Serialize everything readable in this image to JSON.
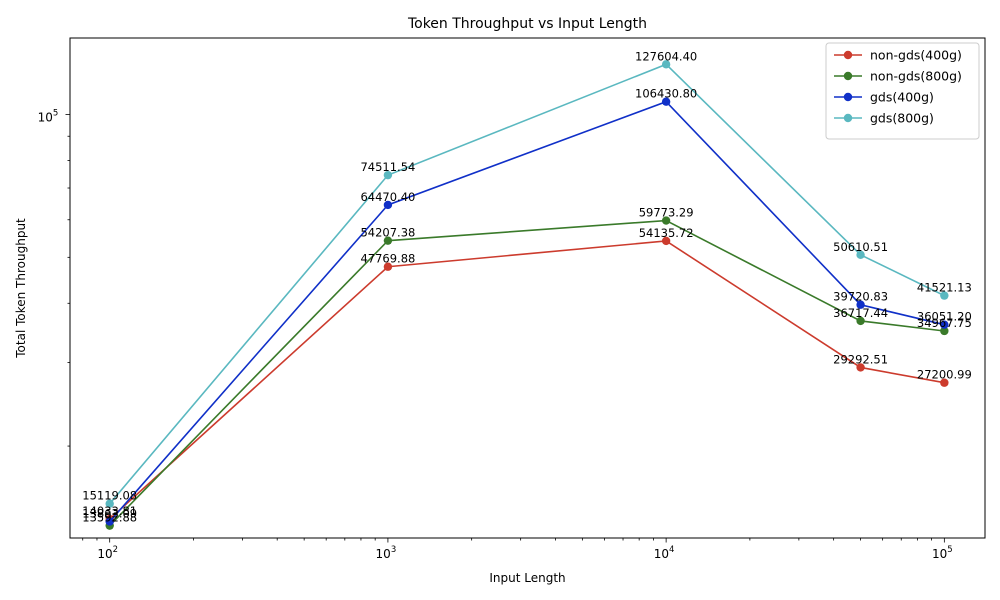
{
  "chart_data": {
    "type": "line",
    "title": "Token Throughput vs Input Length",
    "xlabel": "Input Length",
    "ylabel": "Total Token Throughput",
    "x_scale": "log",
    "y_scale": "log",
    "x": [
      100,
      1000,
      10000,
      50000,
      100000
    ],
    "xlim": [
      72,
      140000
    ],
    "ylim": [
      12800,
      145000
    ],
    "x_ticks": [
      {
        "value": 100,
        "base": "10",
        "exp": "2"
      },
      {
        "value": 1000,
        "base": "10",
        "exp": "3"
      },
      {
        "value": 10000,
        "base": "10",
        "exp": "4"
      },
      {
        "value": 100000,
        "base": "10",
        "exp": "5"
      }
    ],
    "y_ticks": [
      {
        "value": 100000,
        "base": "10",
        "exp": "5"
      }
    ],
    "legend_position": "top-right",
    "grid": false,
    "series": [
      {
        "name": "non-gds(400g)",
        "color": "#cc3b2d",
        "values": [
          14033.81,
          47769.88,
          54135.72,
          29292.51,
          27200.99
        ],
        "labels": [
          "14033.81",
          "47769.88",
          "54135.72",
          "29292.51",
          "27200.99"
        ]
      },
      {
        "name": "non-gds(800g)",
        "color": "#3a7a2a",
        "values": [
          13592.88,
          54207.38,
          59773.29,
          36717.44,
          34967.75
        ],
        "labels": [
          "13592.88",
          "54207.38",
          "59773.29",
          "36717.44",
          "34967.75"
        ]
      },
      {
        "name": "gds(400g)",
        "color": "#1030c8",
        "values": [
          13863.09,
          64470.4,
          106430.8,
          39720.83,
          36051.2
        ],
        "labels": [
          "13863.09",
          "64470.40",
          "106430.80",
          "39720.83",
          "36051.20"
        ]
      },
      {
        "name": "gds(800g)",
        "color": "#5ab8c0",
        "values": [
          15119.08,
          74511.54,
          127604.4,
          50610.51,
          41521.13
        ],
        "labels": [
          "15119.08",
          "74511.54",
          "127604.40",
          "50610.51",
          "41521.13"
        ]
      }
    ]
  }
}
